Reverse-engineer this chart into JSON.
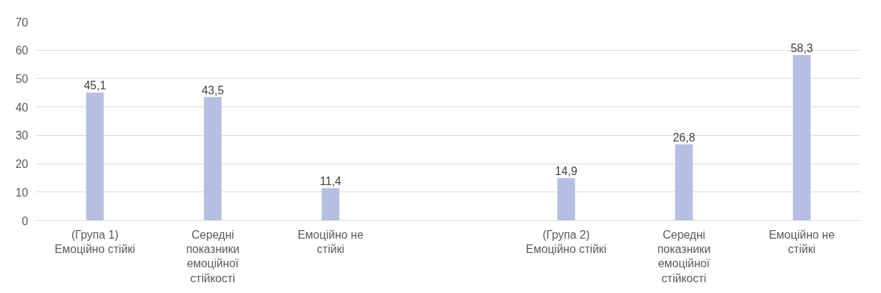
{
  "chart_data": {
    "type": "bar",
    "categories": [
      "(Група 1) Емоційно стійкі",
      "Середні показники емоційної стійкості",
      "Емоційно не стійкі",
      null,
      "(Група 2) Емоційно стійкі",
      "Середні показники емоційної стійкості",
      "Емоційно не стійкі"
    ],
    "values": [
      45.1,
      43.5,
      11.4,
      null,
      14.9,
      26.8,
      58.3
    ],
    "value_labels": [
      "45,1",
      "43,5",
      "11,4",
      null,
      "14,9",
      "26,8",
      "58,3"
    ],
    "color": "#b4bfe2",
    "ylim": [
      0,
      70
    ],
    "yticks": [
      0,
      10,
      20,
      30,
      40,
      50,
      60,
      70
    ],
    "grid": "y"
  }
}
